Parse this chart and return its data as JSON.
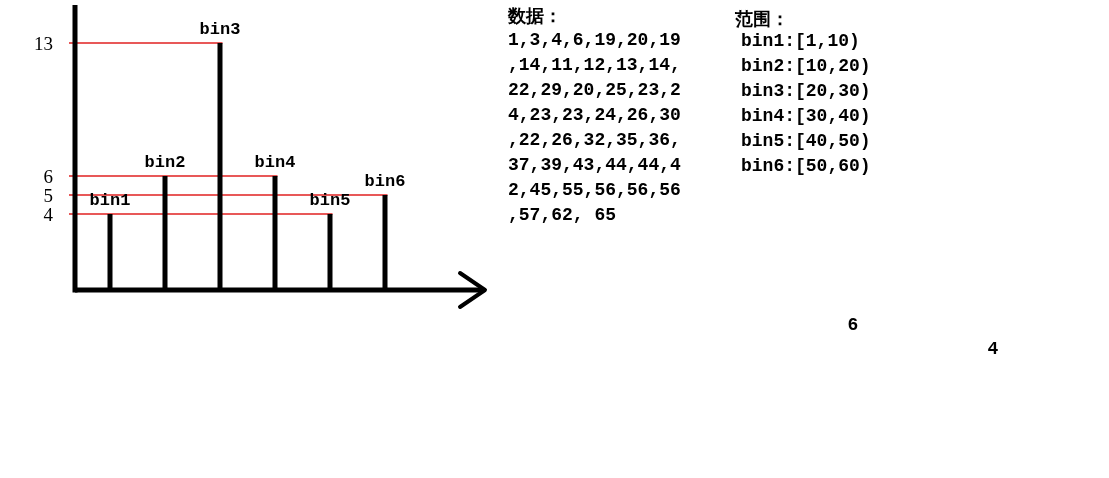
{
  "chart_data": {
    "type": "bar",
    "categories": [
      "bin1",
      "bin2",
      "bin3",
      "bin4",
      "bin5",
      "bin6"
    ],
    "values": [
      4,
      6,
      13,
      6,
      4,
      5
    ],
    "color": "#000000",
    "ylim": [
      0,
      15
    ],
    "yticks": [
      4,
      5,
      6,
      13
    ],
    "ref_lines": [
      {
        "axis": "y",
        "value": 13,
        "color": "#e02020"
      },
      {
        "axis": "y",
        "value": 6,
        "color": "#e02020"
      },
      {
        "axis": "y",
        "value": 5,
        "color": "#e02020"
      },
      {
        "axis": "y",
        "value": 4,
        "color": "#e02020"
      }
    ],
    "annotations": [
      "数据：",
      "1,3,4,6,19,20,19\n,14,11,12,13,14,\n22,29,20,25,23,2\n4,23,23,24,26,30\n,22,26,32,35,36,\n37,39,43,44,44,4\n2,45,55,56,56,56\n,57,62, 65",
      "范围：",
      "bin1:[1,10)\nbin2:[10,20)\nbin3:[20,30)\nbin4:[30,40)\nbin5:[40,50)\nbin6:[50,60)",
      "6",
      "4"
    ]
  }
}
